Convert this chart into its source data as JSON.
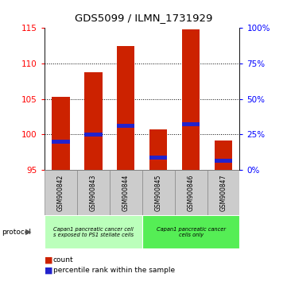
{
  "title": "GDS5099 / ILMN_1731929",
  "samples": [
    "GSM900842",
    "GSM900843",
    "GSM900844",
    "GSM900845",
    "GSM900846",
    "GSM900847"
  ],
  "count_values": [
    105.3,
    108.8,
    112.5,
    100.7,
    114.8,
    99.2
  ],
  "percentile_values": [
    99.0,
    100.0,
    101.2,
    96.8,
    101.5,
    96.3
  ],
  "ylim": [
    95,
    115
  ],
  "yticks_left": [
    95,
    100,
    105,
    110,
    115
  ],
  "yticks_right": [
    0,
    25,
    50,
    75,
    100
  ],
  "bar_color": "#cc2200",
  "percentile_color": "#2222cc",
  "tick_area_color": "#cccccc",
  "proto_color1": "#bbffbb",
  "proto_color2": "#55ee55",
  "proto_text1": "Capan1 pancreatic cancer cell\ns exposed to PS1 stellate cells",
  "proto_text2": "Capan1 pancreatic cancer\ncells only"
}
